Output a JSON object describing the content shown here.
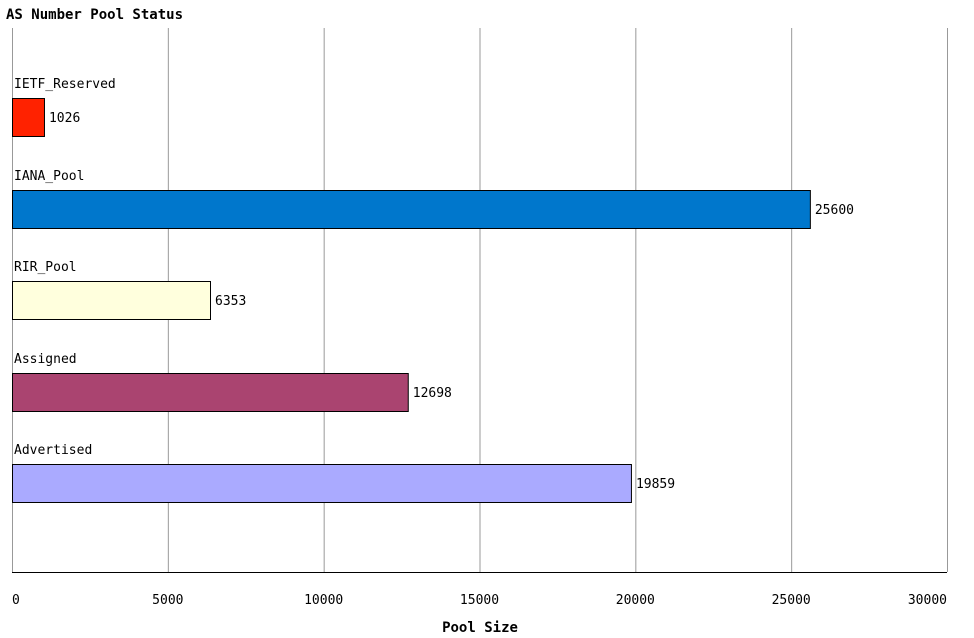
{
  "chart_data": {
    "type": "bar",
    "orientation": "horizontal",
    "title": "AS Number Pool Status",
    "xlabel": "Pool Size",
    "ylabel": "",
    "categories": [
      "IETF_Reserved",
      "IANA_Pool",
      "RIR_Pool",
      "Assigned",
      "Advertised"
    ],
    "values": [
      1026,
      25600,
      6353,
      12698,
      19859
    ],
    "value_labels": [
      "1026",
      "25600",
      "6353",
      "12698",
      "19859"
    ],
    "colors": [
      "#ff2200",
      "#0077cc",
      "#ffffdd",
      "#aa4470",
      "#aaaaff"
    ],
    "xlim": [
      0,
      30000
    ],
    "xticks": [
      0,
      5000,
      10000,
      15000,
      20000,
      25000,
      30000
    ],
    "xtick_labels": [
      "0",
      "5000",
      "10000",
      "15000",
      "20000",
      "25000",
      "30000"
    ],
    "grid": true,
    "legend": "none"
  }
}
